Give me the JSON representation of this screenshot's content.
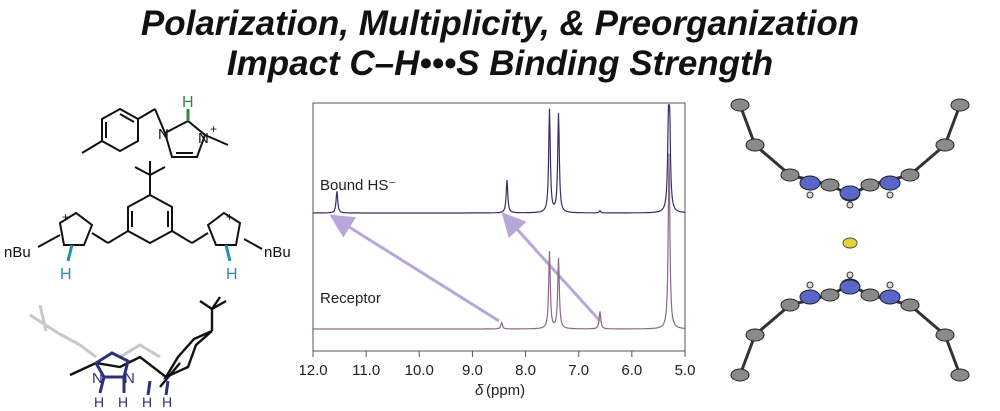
{
  "title": {
    "line1": "Polarization, Multiplicity, & Preorganization",
    "line2": "Impact C–H•••S Binding Strength"
  },
  "structures": {
    "mono_label_H": "H",
    "mono_label_plus": "+",
    "bis_label_left_sub": "nBu",
    "bis_label_right_sub": "nBu",
    "bis_label_H_left": "H",
    "bis_label_H_right": "H",
    "bis_label_plus": "+",
    "bottom_label_N": "N",
    "bottom_label_H": "H"
  },
  "nmr": {
    "trace_top_label": "Bound HS⁻",
    "trace_bottom_label": "Receptor",
    "xlabel_symbol": "δ",
    "xlabel_unit": "(ppm)",
    "colors": {
      "top": "#3b2a6b",
      "bottom": "#8a6a86",
      "arrow": "#b9a6d8"
    }
  },
  "chart_data": {
    "type": "line",
    "xlim": [
      12.0,
      5.0
    ],
    "ticks": [
      "12.0",
      "11.0",
      "10.0",
      "9.0",
      "8.0",
      "7.0",
      "6.0",
      "5.0"
    ],
    "series": [
      {
        "name": "Bound HS⁻",
        "peaks": [
          [
            11.55,
            0.1
          ],
          [
            8.35,
            0.15
          ],
          [
            7.55,
            0.47
          ],
          [
            7.38,
            0.45
          ],
          [
            6.6,
            0.01
          ],
          [
            5.3,
            0.85
          ]
        ]
      },
      {
        "name": "Receptor",
        "peaks": [
          [
            8.45,
            0.03
          ],
          [
            7.55,
            0.35
          ],
          [
            7.38,
            0.32
          ],
          [
            6.6,
            0.08
          ],
          [
            5.3,
            0.8
          ]
        ]
      }
    ],
    "arrows": [
      [
        8.5,
        11.5
      ],
      [
        6.6,
        8.3
      ]
    ]
  }
}
